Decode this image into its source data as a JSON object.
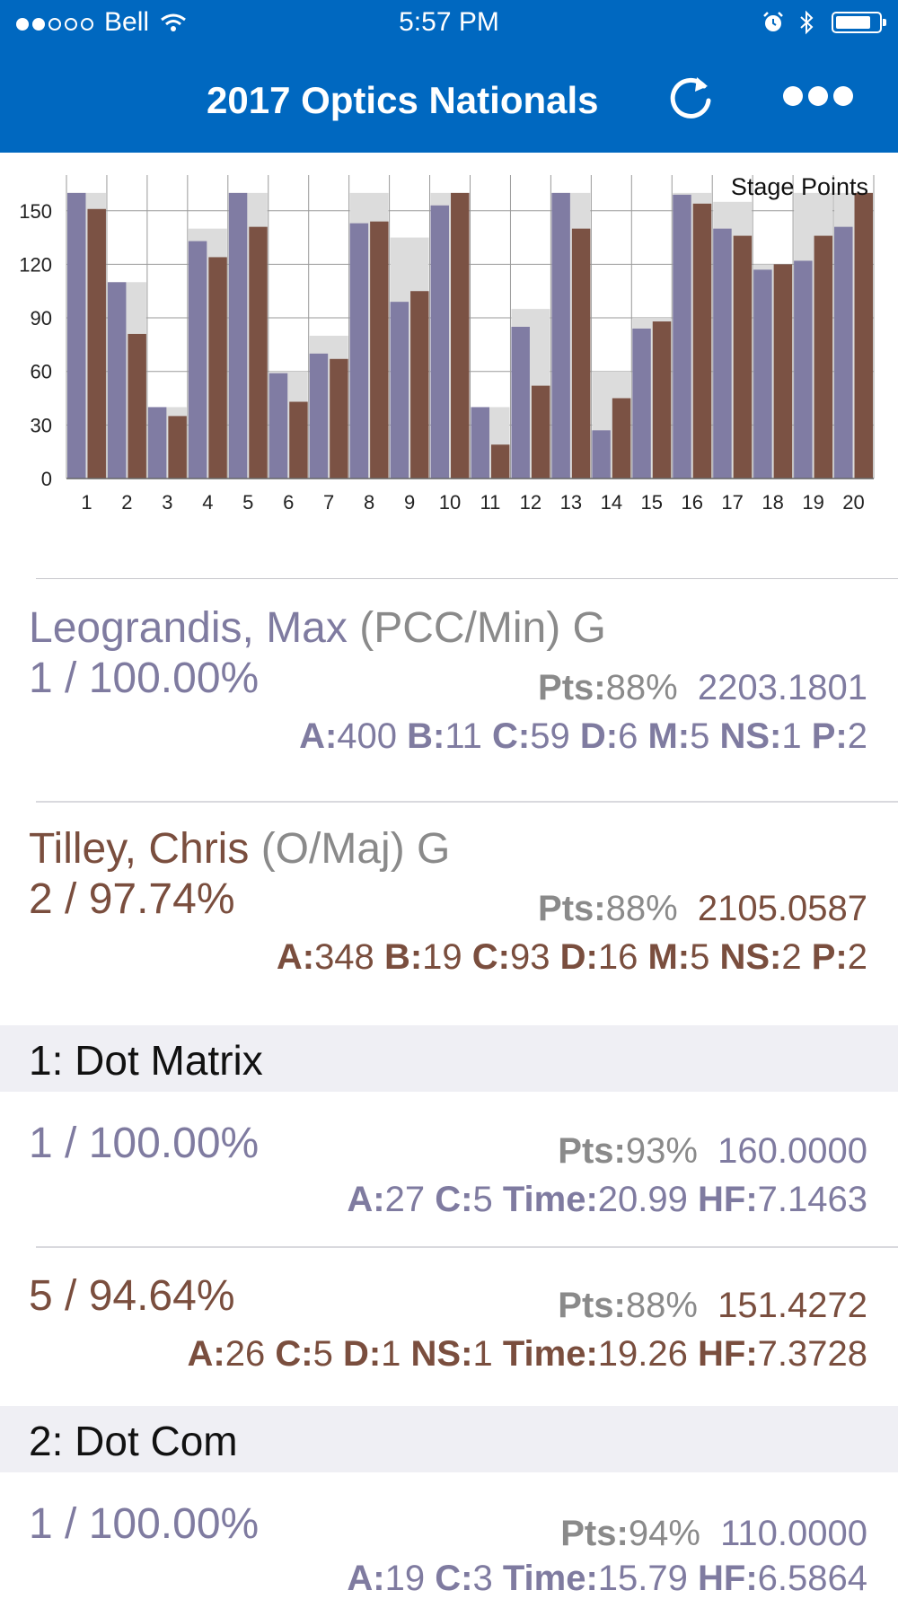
{
  "status_bar": {
    "carrier": "Bell",
    "time": "5:57 PM"
  },
  "nav": {
    "title": "2017 Optics Nationals"
  },
  "chart_data": {
    "type": "bar",
    "title": "Stage Points",
    "categories": [
      "1",
      "2",
      "3",
      "4",
      "5",
      "6",
      "7",
      "8",
      "9",
      "10",
      "11",
      "12",
      "13",
      "14",
      "15",
      "16",
      "17",
      "18",
      "19",
      "20"
    ],
    "ylim": [
      0,
      170
    ],
    "yticks": [
      0,
      30,
      60,
      90,
      120,
      150
    ],
    "max_points": [
      160,
      110,
      40,
      140,
      160,
      60,
      80,
      160,
      135,
      160,
      40,
      95,
      160,
      60,
      90,
      160,
      155,
      120,
      160,
      160
    ],
    "series": [
      {
        "values": [
          160,
          110,
          40,
          133,
          160,
          59,
          70,
          143,
          99,
          153,
          40,
          85,
          160,
          27,
          84,
          159,
          140,
          117,
          122,
          141
        ]
      },
      {
        "values": [
          151,
          81,
          35,
          124,
          141,
          43,
          67,
          144,
          105,
          160,
          19,
          52,
          140,
          45,
          88,
          154,
          136,
          120,
          136,
          160
        ]
      }
    ],
    "colors": {
      "series1": "#807ca3",
      "series2": "#7b5244",
      "max": "#dcdcdc",
      "grid": "#9a9a9a"
    },
    "grid": true
  },
  "competitors": [
    {
      "name": "Leograndis, Max",
      "division": "(PCC/Min) G",
      "rank": "1 / 100.00%",
      "pts_label": "Pts:",
      "pts_pct": "88%",
      "score": "2203.1801",
      "stats": [
        [
          "A:",
          "400"
        ],
        [
          "B:",
          "11"
        ],
        [
          "C:",
          "59"
        ],
        [
          "D:",
          "6"
        ],
        [
          "M:",
          "5"
        ],
        [
          "NS:",
          "1"
        ],
        [
          "P:",
          "2"
        ]
      ]
    },
    {
      "name": "Tilley, Chris",
      "division": "(O/Maj) G",
      "rank": "2 / 97.74%",
      "pts_label": "Pts:",
      "pts_pct": "88%",
      "score": "2105.0587",
      "stats": [
        [
          "A:",
          "348"
        ],
        [
          "B:",
          "19"
        ],
        [
          "C:",
          "93"
        ],
        [
          "D:",
          "16"
        ],
        [
          "M:",
          "5"
        ],
        [
          "NS:",
          "2"
        ],
        [
          "P:",
          "2"
        ]
      ]
    }
  ],
  "stages": [
    {
      "title": "1: Dot Matrix",
      "rows": [
        {
          "rank": "1 / 100.00%",
          "pts_label": "Pts:",
          "pts_pct": "93%",
          "score": "160.0000",
          "stats": [
            [
              "A:",
              "27"
            ],
            [
              "C:",
              "5"
            ],
            [
              "Time:",
              "20.99"
            ],
            [
              "HF:",
              "7.1463"
            ]
          ]
        },
        {
          "rank": "5 / 94.64%",
          "pts_label": "Pts:",
          "pts_pct": "88%",
          "score": "151.4272",
          "stats": [
            [
              "A:",
              "26"
            ],
            [
              "C:",
              "5"
            ],
            [
              "D:",
              "1"
            ],
            [
              "NS:",
              "1"
            ],
            [
              "Time:",
              "19.26"
            ],
            [
              "HF:",
              "7.3728"
            ]
          ]
        }
      ]
    },
    {
      "title": "2: Dot Com",
      "rows": [
        {
          "rank": "1 / 100.00%",
          "pts_label": "Pts:",
          "pts_pct": "94%",
          "score": "110.0000",
          "stats": [
            [
              "A:",
              "19"
            ],
            [
              "C:",
              "3"
            ],
            [
              "Time:",
              "15.79"
            ],
            [
              "HF:",
              "6.5864"
            ]
          ]
        }
      ]
    }
  ]
}
